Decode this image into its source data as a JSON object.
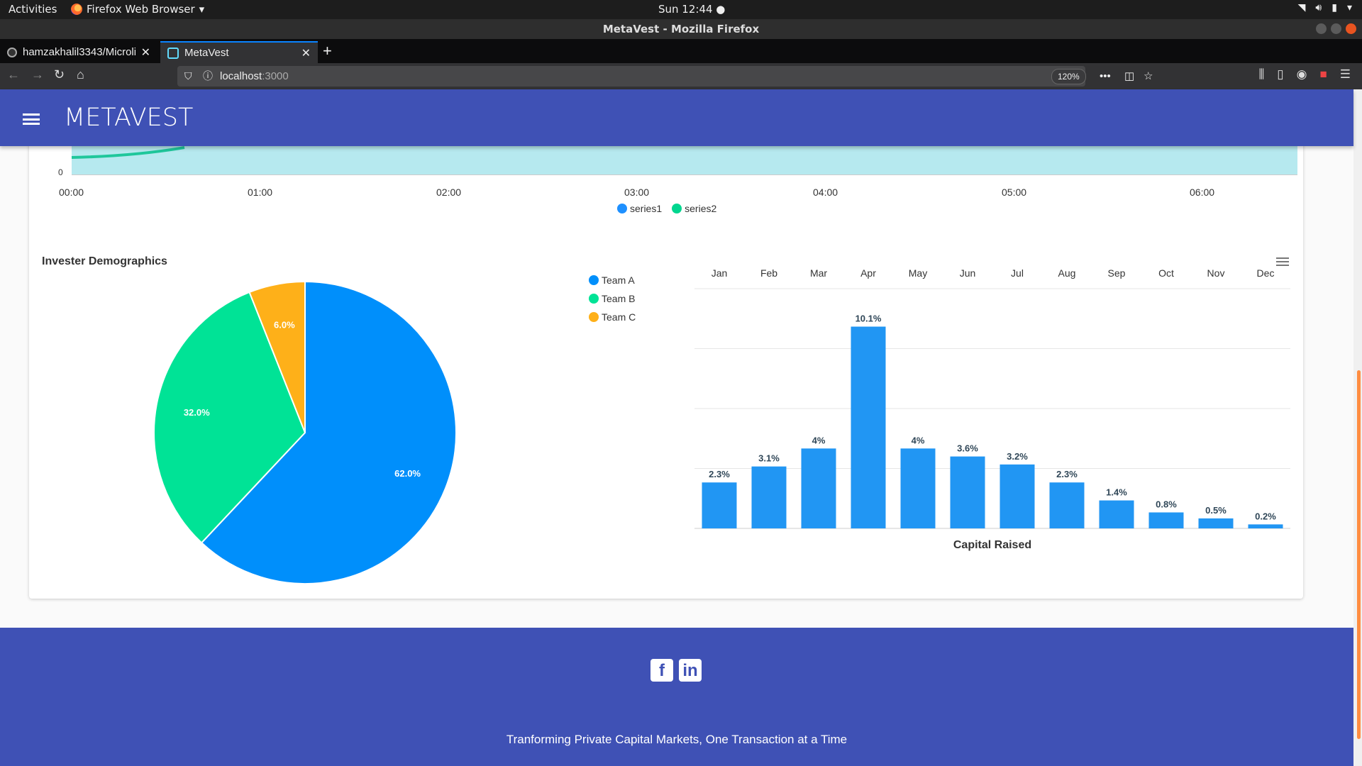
{
  "system": {
    "activities": "Activities",
    "app_name": "Firefox Web Browser",
    "clock": "Sun 12:44"
  },
  "window": {
    "title": "MetaVest - Mozilla Firefox"
  },
  "tabs": [
    {
      "label": "hamzakhalil3343/Microli",
      "icon": "github-icon"
    },
    {
      "label": "MetaVest",
      "icon": "react-icon"
    }
  ],
  "urlbar": {
    "host": "localhost",
    "port": ":3000",
    "zoom": "120%"
  },
  "app": {
    "logo": "METAVEST"
  },
  "timeline_chart": {
    "y_tick": "0",
    "x_ticks": [
      "00:00",
      "01:00",
      "02:00",
      "03:00",
      "04:00",
      "05:00",
      "06:00"
    ],
    "legend": [
      {
        "name": "series1",
        "color": "#1e90ff"
      },
      {
        "name": "series2",
        "color": "#00d68f"
      }
    ]
  },
  "chart_data": [
    {
      "type": "pie",
      "title": "Invester Demographics",
      "labels": [
        "Team A",
        "Team B",
        "Team C"
      ],
      "values": [
        62.0,
        32.0,
        6.0
      ],
      "value_labels": [
        "62.0%",
        "32.0%",
        "6.0%"
      ],
      "colors": [
        "#008ffb",
        "#00e396",
        "#feb019"
      ],
      "legend_position": "top-right"
    },
    {
      "type": "bar",
      "categories": [
        "Jan",
        "Feb",
        "Mar",
        "Apr",
        "May",
        "Jun",
        "Jul",
        "Aug",
        "Sep",
        "Oct",
        "Nov",
        "Dec"
      ],
      "values": [
        2.3,
        3.1,
        4,
        10.1,
        4,
        3.6,
        3.2,
        2.3,
        1.4,
        0.8,
        0.5,
        0.2
      ],
      "value_labels": [
        "2.3%",
        "3.1%",
        "4%",
        "10.1%",
        "4%",
        "3.6%",
        "3.2%",
        "2.3%",
        "1.4%",
        "0.8%",
        "0.5%",
        "0.2%"
      ],
      "xlabel": "Capital Raised",
      "ylim": [
        0,
        12
      ],
      "color": "#2196f3",
      "grid": true,
      "xaxis_position": "top"
    }
  ],
  "footer": {
    "social": [
      "facebook-icon",
      "linkedin-icon"
    ],
    "tagline": "Tranforming Private Capital Markets, One Transaction at a Time"
  }
}
